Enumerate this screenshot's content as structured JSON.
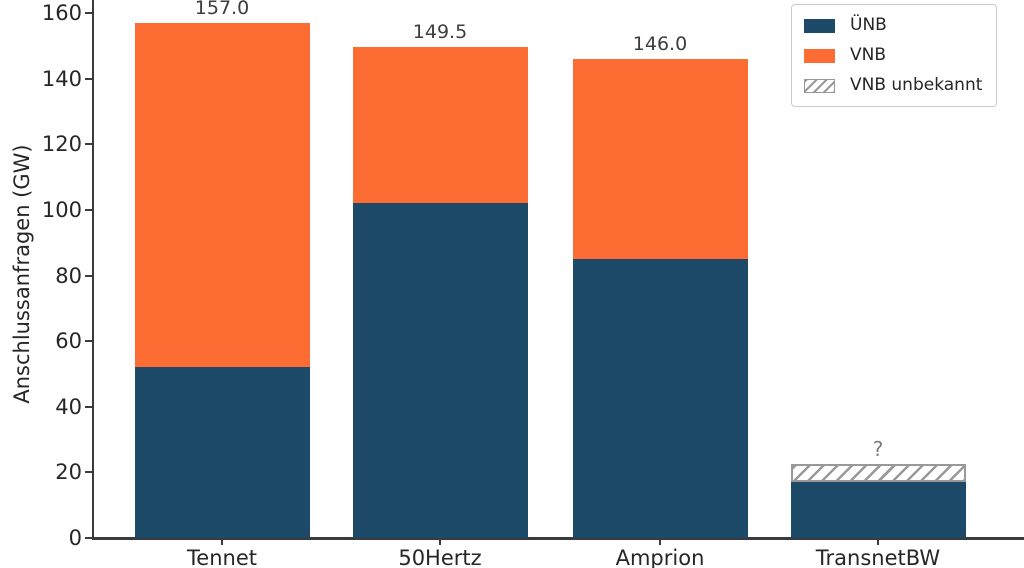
{
  "chart_data": {
    "type": "bar",
    "stacked": true,
    "title": "",
    "xlabel": "",
    "ylabel": "Anschlussanfragen (GW)",
    "ylim": [
      0,
      160
    ],
    "yticks": [
      0,
      20,
      40,
      60,
      80,
      100,
      120,
      140,
      160
    ],
    "grid": false,
    "legend_position": "upper right",
    "categories": [
      "Tennet",
      "50Hertz",
      "Amprion",
      "TransnetBW"
    ],
    "series": [
      {
        "name": "ÜNB",
        "color": "#1d4a68",
        "style": "solid",
        "values": [
          52,
          102,
          85,
          17
        ]
      },
      {
        "name": "VNB",
        "color": "#fc6c33",
        "style": "solid",
        "values": [
          105,
          47.5,
          61,
          0
        ]
      },
      {
        "name": "VNB unbekannt",
        "color": "#999999",
        "style": "hatched",
        "values": [
          0,
          0,
          0,
          5.5
        ]
      }
    ],
    "bar_total_labels": [
      "157.0",
      "149.5",
      "146.0",
      "?"
    ],
    "colors": {
      "axis": "#3b3b3b",
      "tick_text": "#262626",
      "value_label": "#3d3d3d",
      "unknown_label": "#7d7d7d",
      "hatch": "#999999",
      "legend_border": "#cccccc",
      "background": "#ffffff"
    }
  }
}
